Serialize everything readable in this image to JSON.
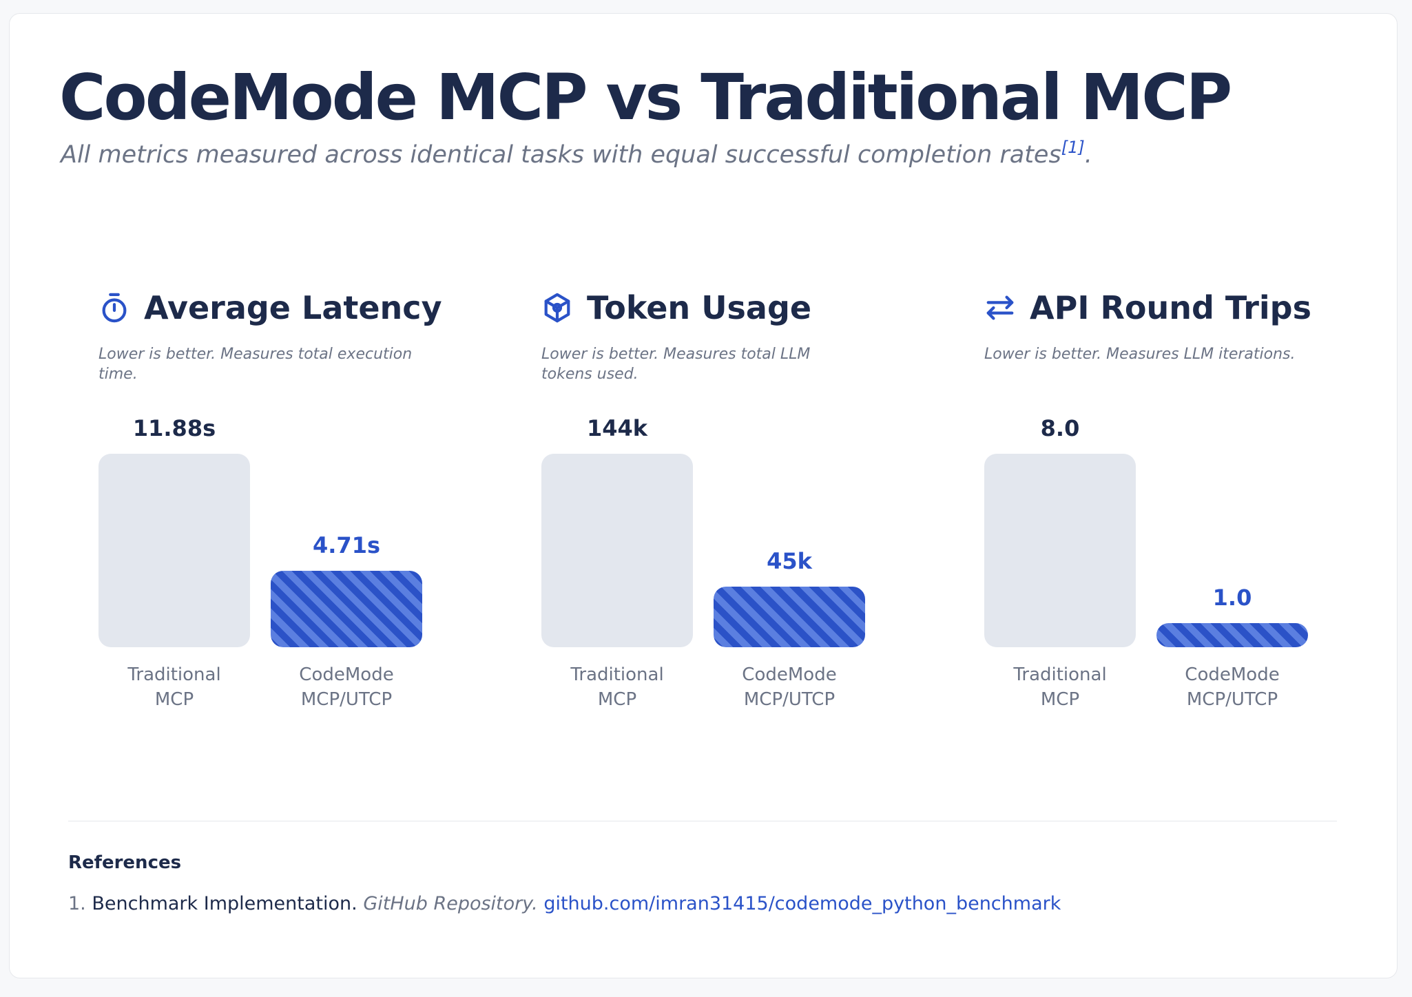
{
  "title": "CodeMode MCP vs Traditional MCP",
  "subtitle": {
    "text": "All metrics measured across identical tasks with equal successful completion rates",
    "ref_marker": "[1]",
    "end": "."
  },
  "colors": {
    "traditional_bar": "#e3e7ee",
    "codemode_bar": "#2b52c7",
    "codemode_stripe": "#5b7fe0",
    "title": "#1d2a4a",
    "accent": "#2a52c8"
  },
  "chart_data": [
    {
      "type": "bar",
      "icon": "stopwatch-icon",
      "title": "Average Latency",
      "description": "Lower is better. Measures total execution time.",
      "categories": [
        "Traditional MCP",
        "CodeMode MCP/UTCP"
      ],
      "category_lines": [
        [
          "Traditional",
          "MCP"
        ],
        [
          "CodeMode",
          "MCP/UTCP"
        ]
      ],
      "values": [
        11.88,
        4.71
      ],
      "labels": [
        "11.88s",
        "4.71s"
      ],
      "ylim": [
        0,
        11.88
      ]
    },
    {
      "type": "bar",
      "icon": "hexagon-cube-icon",
      "title": "Token Usage",
      "description": "Lower is better. Measures total LLM tokens used.",
      "categories": [
        "Traditional MCP",
        "CodeMode MCP/UTCP"
      ],
      "category_lines": [
        [
          "Traditional",
          "MCP"
        ],
        [
          "CodeMode",
          "MCP/UTCP"
        ]
      ],
      "values": [
        144,
        45
      ],
      "labels": [
        "144k",
        "45k"
      ],
      "ylim": [
        0,
        144
      ]
    },
    {
      "type": "bar",
      "icon": "swap-arrows-icon",
      "title": "API Round Trips",
      "description": "Lower is better. Measures LLM iterations.",
      "categories": [
        "Traditional MCP",
        "CodeMode MCP/UTCP"
      ],
      "category_lines": [
        [
          "Traditional",
          "MCP"
        ],
        [
          "CodeMode",
          "MCP/UTCP"
        ]
      ],
      "values": [
        8.0,
        1.0
      ],
      "labels": [
        "8.0",
        "1.0"
      ],
      "ylim": [
        0,
        8.0
      ]
    }
  ],
  "references": {
    "heading": "References",
    "items": [
      {
        "number": "1.",
        "title": "Benchmark Implementation",
        "separator": ".",
        "source": "GitHub Repository.",
        "link": "github.com/imran31415/codemode_python_benchmark"
      }
    ]
  }
}
